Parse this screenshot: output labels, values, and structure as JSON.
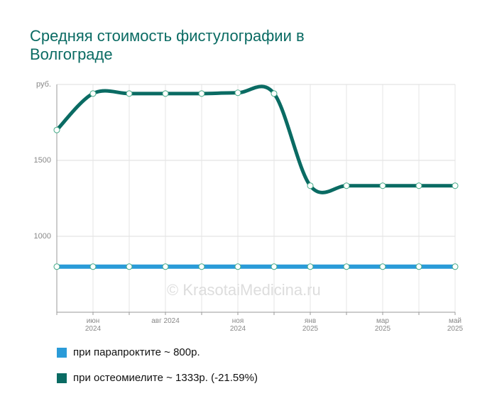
{
  "chart_data": {
    "type": "line",
    "title": "Средняя стоимость фистулографии в Волгограде",
    "watermark": "© KrasotaiMedicina.ru",
    "categories": [
      null,
      "июн 2024",
      null,
      "авг 2024",
      null,
      "ноя 2024",
      null,
      "янв 2025",
      null,
      "мар 2025",
      null,
      "май 2025"
    ],
    "series": [
      {
        "name": "при парапроктите ~ 800р.",
        "color": "#2a9bd8",
        "values": [
          800,
          800,
          800,
          800,
          800,
          800,
          800,
          800,
          800,
          800,
          800,
          800
        ]
      },
      {
        "name": "при остеомиелите ~ 1333р. (-21.59%)",
        "color": "#0a6b63",
        "values": [
          1700,
          1940,
          1940,
          1940,
          1940,
          1945,
          1940,
          1333,
          1333,
          1333,
          1333,
          1333
        ]
      }
    ],
    "ylim": [
      500,
      2000
    ],
    "yticks": [
      1000,
      1500,
      {
        "value": 2000,
        "label": "руб."
      }
    ],
    "grid": true
  }
}
